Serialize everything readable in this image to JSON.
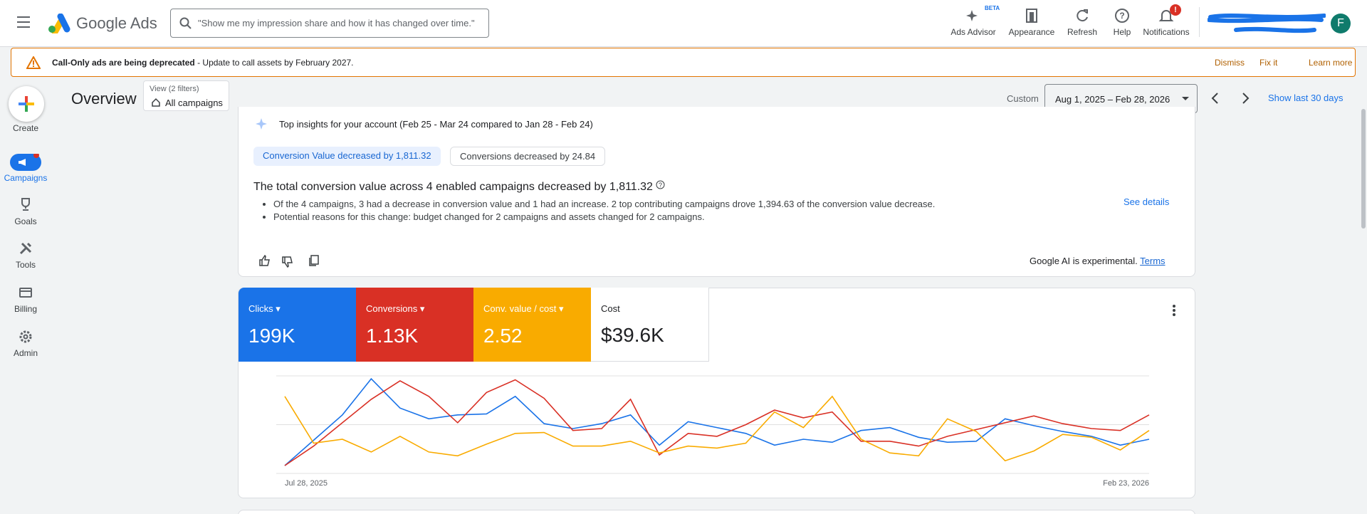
{
  "header": {
    "product": "Google Ads",
    "search_placeholder": "\"Show me my impression share and how it has changed over time.\"",
    "actions": [
      {
        "label": "Ads Advisor",
        "badge": "BETA"
      },
      {
        "label": "Appearance"
      },
      {
        "label": "Refresh"
      },
      {
        "label": "Help"
      },
      {
        "label": "Notifications",
        "badge": "!"
      }
    ],
    "avatar": "F"
  },
  "banner": {
    "title": "Call-Only ads are being deprecated",
    "message": " - Update to call assets by February 2027.",
    "actions": [
      "Dismiss",
      "Fix it",
      "Learn more"
    ]
  },
  "sidebar": [
    {
      "label": "Create"
    },
    {
      "label": "Campaigns"
    },
    {
      "label": "Goals"
    },
    {
      "label": "Tools"
    },
    {
      "label": "Billing"
    },
    {
      "label": "Admin"
    }
  ],
  "overview": {
    "title": "Overview",
    "view_label": "View (2 filters)",
    "view_value": "All campaigns",
    "range_type": "Custom",
    "date_range": "Aug 1, 2025 – Feb 28, 2026",
    "show_last": "Show last 30 days"
  },
  "insights": {
    "title": "Top insights for your account (Feb 25 - Mar 24 compared to Jan 28 - Feb 24)",
    "chips": [
      "Conversion Value decreased by 1,811.32",
      "Conversions decreased by 24.84"
    ],
    "heading": "The total conversion value across 4 enabled campaigns decreased by 1,811.32",
    "bullets": [
      "Of the 4 campaigns, 3 had a decrease in conversion value and 1 had an increase. 2 top contributing campaigns drove 1,394.63 of the conversion value decrease.",
      "Potential reasons for this change: budget changed for 2 campaigns and assets changed for 2 campaigns."
    ],
    "link": "See details",
    "disclaimer": "Google AI is experimental.",
    "terms": "Terms"
  },
  "metrics": [
    {
      "label": "Clicks",
      "value": "199K"
    },
    {
      "label": "Conversions",
      "value": "1.13K"
    },
    {
      "label": "Conv. value / cost",
      "value": "2.52"
    },
    {
      "label": "Cost",
      "value": "$39.6K"
    }
  ],
  "chart_data": {
    "type": "line",
    "categories": [
      "Jul 28, 2025",
      null,
      null,
      null,
      null,
      null,
      null,
      null,
      null,
      null,
      null,
      null,
      null,
      null,
      null,
      null,
      null,
      null,
      null,
      null,
      null,
      null,
      null,
      null,
      null,
      null,
      null,
      null,
      null,
      null,
      "Feb 23, 2026"
    ],
    "series": [
      {
        "name": "Clicks",
        "color": "#1a73e8",
        "values": [
          8,
          34,
          60,
          97,
          67,
          56,
          60,
          61,
          79,
          51,
          46,
          51,
          60,
          29,
          53,
          47,
          41,
          29,
          35,
          32,
          44,
          47,
          37,
          32,
          33,
          56,
          49,
          43,
          38,
          29,
          35
        ]
      },
      {
        "name": "Conversions",
        "color": "#d93025",
        "values": [
          8,
          28,
          52,
          76,
          95,
          79,
          52,
          83,
          96,
          77,
          44,
          46,
          76,
          19,
          41,
          38,
          50,
          65,
          57,
          63,
          33,
          33,
          28,
          38,
          45,
          52,
          59,
          51,
          46,
          44,
          60
        ]
      },
      {
        "name": "Conv. value / cost",
        "color": "#f9ab00",
        "values": [
          79,
          31,
          35,
          22,
          38,
          22,
          18,
          30,
          41,
          42,
          28,
          28,
          33,
          21,
          28,
          26,
          31,
          63,
          47,
          79,
          35,
          21,
          18,
          56,
          43,
          13,
          23,
          40,
          37,
          24,
          44
        ]
      }
    ],
    "ylim": [
      0,
      100
    ],
    "yticks": [
      0,
      50,
      100
    ],
    "grid": true
  }
}
